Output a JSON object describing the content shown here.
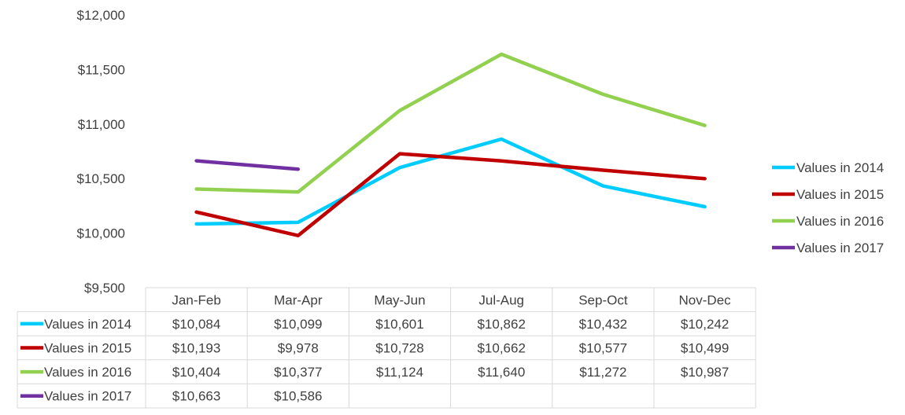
{
  "chart_data": {
    "type": "line",
    "title": "",
    "xlabel": "",
    "ylabel": "",
    "categories": [
      "Jan-Feb",
      "Mar-Apr",
      "May-Jun",
      "Jul-Aug",
      "Sep-Oct",
      "Nov-Dec"
    ],
    "ylim": [
      9500,
      12000
    ],
    "yticks": [
      9500,
      10000,
      10500,
      11000,
      11500,
      12000
    ],
    "ytick_labels": [
      "$9,500",
      "$10,000",
      "$10,500",
      "$11,000",
      "$11,500",
      "$12,000"
    ],
    "grid": false,
    "legend_position": "right",
    "data_table": true,
    "series": [
      {
        "name": "Values in 2014",
        "color": "#00CCFF",
        "values": [
          10084,
          10099,
          10601,
          10862,
          10432,
          10242
        ],
        "labels": [
          "$10,084",
          "$10,099",
          "$10,601",
          "$10,862",
          "$10,432",
          "$10,242"
        ]
      },
      {
        "name": "Values in 2015",
        "color": "#C00000",
        "values": [
          10193,
          9978,
          10728,
          10662,
          10577,
          10499
        ],
        "labels": [
          "$10,193",
          "$9,978",
          "$10,728",
          "$10,662",
          "$10,577",
          "$10,499"
        ]
      },
      {
        "name": "Values in 2016",
        "color": "#92D050",
        "values": [
          10404,
          10377,
          11124,
          11640,
          11272,
          10987
        ],
        "labels": [
          "$10,404",
          "$10,377",
          "$11,124",
          "$11,640",
          "$11,272",
          "$10,987"
        ]
      },
      {
        "name": "Values in 2017",
        "color": "#7030A0",
        "values": [
          10663,
          10586,
          null,
          null,
          null,
          null
        ],
        "labels": [
          "$10,663",
          "$10,586",
          "",
          "",
          "",
          ""
        ]
      }
    ]
  }
}
